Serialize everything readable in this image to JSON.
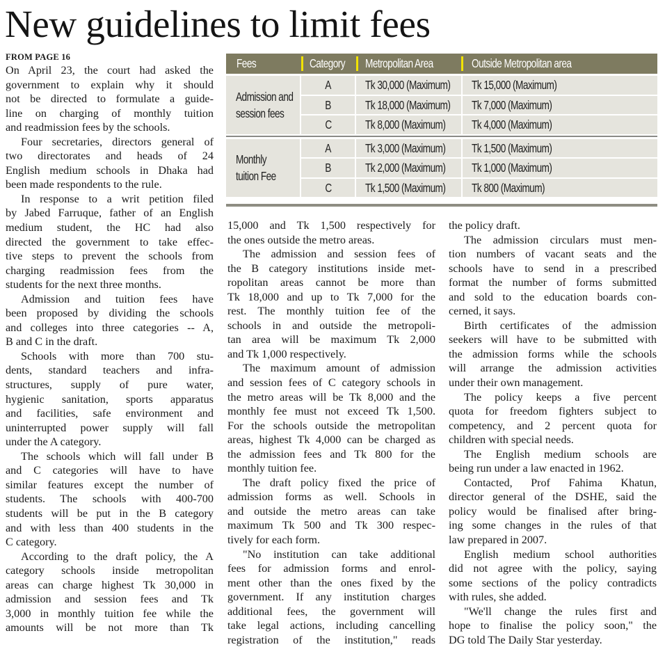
{
  "headline": "New guidelines to limit fees",
  "kicker": "FROM PAGE 16",
  "table": {
    "headers": [
      "Fees",
      "Category",
      "Metropolitan Area",
      "Outside Metropolitan area"
    ],
    "groups": [
      {
        "label": [
          "Admission and",
          "session fees"
        ],
        "rows": [
          {
            "category": "A",
            "metro": "Tk 30,000 (Maximum)",
            "outside": "Tk 15,000 (Maximum)"
          },
          {
            "category": "B",
            "metro": "Tk 18,000 (Maximum)",
            "outside": "Tk 7,000 (Maximum)"
          },
          {
            "category": "C",
            "metro": "Tk 8,000 (Maximum)",
            "outside": "Tk 4,000 (Maximum)"
          }
        ]
      },
      {
        "label": [
          "Monthly",
          "tuition Fee"
        ],
        "rows": [
          {
            "category": "A",
            "metro": "Tk 3,000 (Maximum)",
            "outside": "Tk 1,500 (Maximum)"
          },
          {
            "category": "B",
            "metro": "Tk 2,000 (Maximum)",
            "outside": "Tk 1,000 (Maximum)"
          },
          {
            "category": "C",
            "metro": "Tk 1,500 (Maximum)",
            "outside": "Tk 800 (Maximum)"
          }
        ]
      }
    ],
    "colors": {
      "header_bg": "#7e7b60",
      "separator": "#f2e300",
      "cell_bg": "#e5e4dd"
    }
  },
  "columns": [
    [
      [
        "On April 23, the court had asked the",
        "government to explain why it should",
        "not be directed to formulate a guide-",
        "line on charging of monthly tuition",
        "and readmission fees by the schools."
      ],
      [
        "Four secretaries, directors general of",
        "two directorates and heads of 24",
        "English medium schools in Dhaka had",
        "been made respondents to the rule."
      ],
      [
        "In response to a writ petition filed",
        "by Jabed Farruque, father of an English",
        "medium student, the HC had also",
        "directed the government to take effec-",
        "tive steps to prevent the schools from",
        "charging readmission fees from the",
        "students for the next three months."
      ],
      [
        "Admission and tuition fees have",
        "been proposed by dividing the schools",
        "and colleges into three categories -- A,",
        "B and C in the draft."
      ],
      [
        "Schools with more than 700 stu-",
        "dents, standard teachers and infra-",
        "structures, supply of pure water,",
        "hygienic sanitation, sports apparatus",
        "and facilities, safe environment and",
        "uninterrupted power supply will fall",
        "under the A category."
      ],
      [
        "The schools which will fall under B",
        "and C categories will have to have",
        "similar features except the number of",
        "students. The schools with 400-700",
        "students will be put in the B category",
        "and with less than 400 students in the",
        "C category."
      ],
      [
        "According to the draft policy, the A",
        "category schools inside metropolitan",
        "areas can charge highest Tk 30,000 in",
        "admission and session fees and Tk",
        "3,000 in monthly tuition fee while the",
        "amounts will be not more than Tk"
      ]
    ],
    [
      [
        "15,000 and Tk 1,500 respectively for",
        "the ones outside the metro areas."
      ],
      [
        "The admission and session fees of",
        "the B category institutions inside met-",
        "ropolitan areas cannot be more than",
        "Tk 18,000 and up to Tk 7,000 for the",
        "rest. The monthly tuition fee of the",
        "schools in and outside the metropoli-",
        "tan area will be maximum Tk 2,000",
        "and Tk 1,000 respectively."
      ],
      [
        "The maximum amount of admission",
        "and session fees of C category schools in",
        "the metro areas will be Tk 8,000 and the",
        "monthly fee must not exceed Tk 1,500.",
        "For the schools outside the metropolitan",
        "areas, highest Tk 4,000 can be charged as",
        "the admission fees and Tk 800 for the",
        "monthly tuition fee."
      ],
      [
        "The draft policy fixed the price of",
        "admission forms as well. Schools in",
        "and outside the metro areas can take",
        "maximum Tk 500 and Tk 300 respec-",
        "tively for each form."
      ],
      [
        "\"No institution can take additional",
        "fees for admission forms and enrol-",
        "ment other than the ones fixed by the",
        "government. If any institution charges",
        "additional fees, the government will",
        "take legal actions, including cancelling",
        "registration of the institution,\" reads"
      ]
    ],
    [
      [
        "the policy draft."
      ],
      [
        "The admission circulars must men-",
        "tion numbers of vacant seats and the",
        "schools have to send in a prescribed",
        "format the number of forms submitted",
        "and sold to the education boards con-",
        "cerned, it says."
      ],
      [
        "Birth certificates of the admission",
        "seekers will have to be submitted with",
        "the admission forms while the schools",
        "will arrange the admission activities",
        "under their own management."
      ],
      [
        "The policy keeps a five percent",
        "quota for freedom fighters subject to",
        "competency, and 2 percent quota for",
        "children with special needs."
      ],
      [
        "The English medium schools are",
        "being run under a law enacted in 1962."
      ],
      [
        "Contacted, Prof Fahima Khatun,",
        "director general of the DSHE, said the",
        "policy would be finalised after bring-",
        "ing some changes in the rules of that",
        "law prepared in 2007."
      ],
      [
        "English medium school authorities",
        "did not agree with the policy, saying",
        "some sections of the policy contradicts",
        "with rules, she added."
      ],
      [
        "\"We'll change the rules first and",
        "hope to finalise the policy soon,\" the",
        "DG told The Daily Star yesterday."
      ]
    ]
  ]
}
